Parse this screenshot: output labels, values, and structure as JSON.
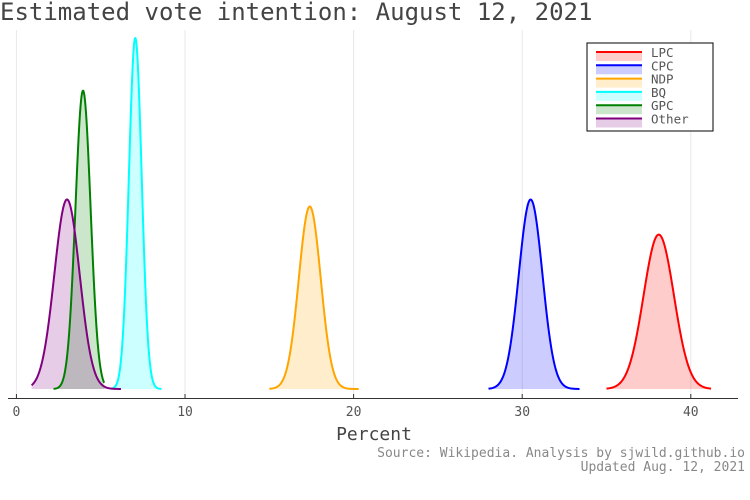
{
  "chart_data": {
    "type": "area",
    "title": "Estimated vote intention: August 12, 2021",
    "xlabel": "Percent",
    "ylabel": "",
    "xlim": [
      -0.5,
      42.8
    ],
    "ylim": [
      0,
      1.0
    ],
    "x_ticks": [
      0,
      10,
      20,
      30,
      40
    ],
    "x_tick_labels": [
      "0",
      "10",
      "20",
      "30",
      "40"
    ],
    "grid": true,
    "legend_position": "top-right",
    "series": [
      {
        "name": "LPC",
        "color": "#ff0000",
        "center": 38.1,
        "sd": 0.9,
        "peak": 0.44,
        "range": [
          35.0,
          41.2
        ]
      },
      {
        "name": "CPC",
        "color": "#0000ff",
        "center": 30.5,
        "sd": 0.7,
        "peak": 0.54,
        "range": [
          28.0,
          33.4
        ]
      },
      {
        "name": "NDP",
        "color": "#ffa500",
        "center": 17.4,
        "sd": 0.65,
        "peak": 0.52,
        "range": [
          15.0,
          20.3
        ]
      },
      {
        "name": "BQ",
        "color": "#00ffff",
        "center": 7.05,
        "sd": 0.38,
        "peak": 1.0,
        "range": [
          5.6,
          8.6
        ]
      },
      {
        "name": "GPC",
        "color": "#008000",
        "center": 3.95,
        "sd": 0.45,
        "peak": 0.85,
        "range": [
          2.2,
          5.2
        ]
      },
      {
        "name": "Other",
        "color": "#800080",
        "center": 3.0,
        "sd": 0.75,
        "peak": 0.54,
        "range": [
          0.9,
          6.2
        ]
      }
    ]
  },
  "source": {
    "line1": "Source: Wikipedia. Analysis by sjwild.github.io",
    "line2": "Updated Aug. 12, 2021"
  }
}
